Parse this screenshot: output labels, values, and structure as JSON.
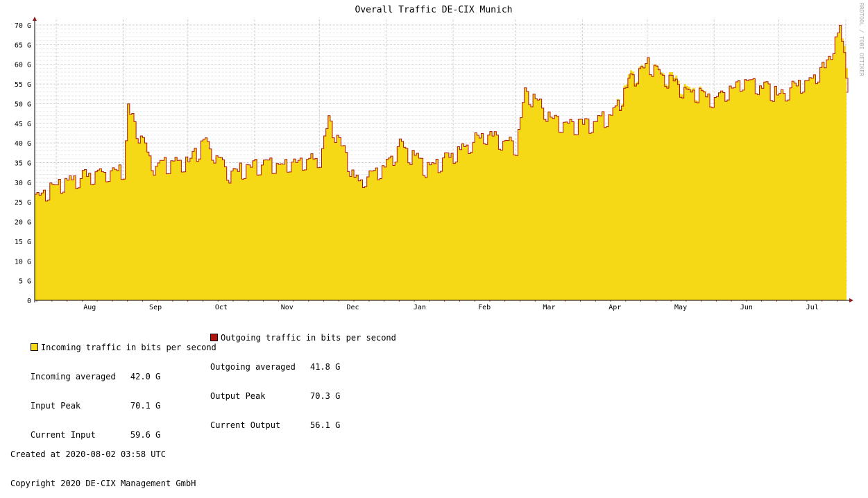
{
  "chart_data": {
    "type": "area",
    "title": "Overall Traffic DE-CIX Munich",
    "watermark": "RRDTOOL / TOBI OETIKER",
    "unit": "bits per second",
    "y_ticks": [
      "0",
      "5 G",
      "10 G",
      "15 G",
      "20 G",
      "25 G",
      "30 G",
      "35 G",
      "40 G",
      "45 G",
      "50 G",
      "55 G",
      "60 G",
      "65 G",
      "70 G"
    ],
    "ylim": [
      0,
      70
    ],
    "x_labels": [
      "Aug",
      "Sep",
      "Oct",
      "Nov",
      "Dec",
      "Jan",
      "Feb",
      "Mar",
      "Apr",
      "May",
      "Jun",
      "Jul"
    ],
    "x_range": [
      "2019-07-22",
      "2020-08-02"
    ],
    "grid": true,
    "series": [
      {
        "name": "Incoming traffic in bits per second",
        "color": "#f5d917",
        "x": [
          "2019-07-22",
          "2019-08-05",
          "2019-08-20",
          "2019-09-01",
          "2019-09-03",
          "2019-09-15",
          "2019-10-01",
          "2019-10-09",
          "2019-10-20",
          "2019-11-01",
          "2019-11-20",
          "2019-12-01",
          "2019-12-05",
          "2019-12-18",
          "2020-01-01",
          "2020-01-07",
          "2020-01-20",
          "2020-02-01",
          "2020-02-15",
          "2020-03-01",
          "2020-03-05",
          "2020-03-20",
          "2020-04-01",
          "2020-04-15",
          "2020-04-22",
          "2020-05-01",
          "2020-05-15",
          "2020-06-01",
          "2020-06-15",
          "2020-07-01",
          "2020-07-15",
          "2020-07-22",
          "2020-07-29",
          "2020-08-02"
        ],
        "values": [
          27,
          31,
          33,
          34,
          49,
          35,
          36,
          41,
          33,
          35,
          36,
          37,
          47,
          31,
          35,
          40,
          34,
          38,
          43,
          40,
          54,
          46,
          45,
          48,
          57,
          61,
          56,
          52,
          57,
          53,
          57,
          60,
          70.1,
          59.6
        ]
      },
      {
        "name": "Outgoing traffic in bits per second",
        "color": "#b0150f",
        "x": [
          "2019-07-22",
          "2019-08-05",
          "2019-08-20",
          "2019-09-01",
          "2019-09-03",
          "2019-09-15",
          "2019-10-01",
          "2019-10-09",
          "2019-10-20",
          "2019-11-01",
          "2019-11-20",
          "2019-12-01",
          "2019-12-05",
          "2019-12-18",
          "2020-01-01",
          "2020-01-07",
          "2020-01-20",
          "2020-02-01",
          "2020-02-15",
          "2020-03-01",
          "2020-03-05",
          "2020-03-20",
          "2020-04-01",
          "2020-04-15",
          "2020-04-22",
          "2020-05-01",
          "2020-05-15",
          "2020-06-01",
          "2020-06-15",
          "2020-07-01",
          "2020-07-15",
          "2020-07-22",
          "2020-07-29",
          "2020-08-02"
        ],
        "values": [
          27,
          31,
          33,
          34,
          49,
          35,
          36,
          41,
          33,
          35,
          36,
          37,
          47,
          31,
          35,
          40,
          34,
          38,
          43,
          40,
          54,
          46,
          45,
          48,
          56,
          61,
          55,
          52,
          57,
          53,
          57,
          60,
          70.3,
          56.1
        ]
      }
    ]
  },
  "legend": {
    "incoming_label": "Incoming traffic in bits per second",
    "outgoing_label": "Outgoing traffic in bits per second",
    "incoming_color": "#f5d917",
    "outgoing_color": "#b0150f",
    "incoming_averaged_label": "Incoming averaged",
    "incoming_averaged_value": "42.0 G",
    "input_peak_label": "Input Peak",
    "input_peak_value": "70.1 G",
    "current_input_label": "Current Input",
    "current_input_value": "59.6 G",
    "outgoing_averaged_label": "Outgoing averaged",
    "outgoing_averaged_value": "41.8 G",
    "output_peak_label": "Output Peak",
    "output_peak_value": "70.3 G",
    "current_output_label": "Current Output",
    "current_output_value": "56.1 G",
    "created": "Created at 2020-08-02 03:58 UTC",
    "copyright": "Copyright 2020 DE-CIX Management GmbH"
  }
}
